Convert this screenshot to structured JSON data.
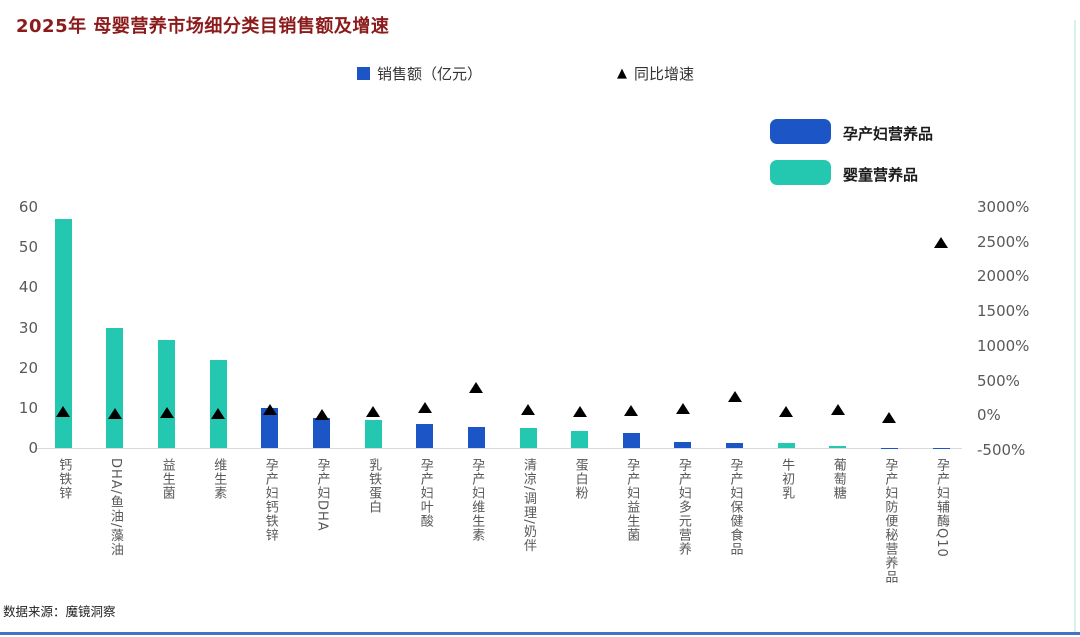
{
  "page": {
    "title": "2025年 母婴营养市场细分类目销售额及增速",
    "source": "数据来源：魔镜洞察"
  },
  "legend": {
    "sales": "销售额（亿元）",
    "growth": "同比增速"
  },
  "series_legend": [
    {
      "label": "孕产妇营养品",
      "color": "#1C55C6"
    },
    {
      "label": "婴童营养品",
      "color": "#24C8B1"
    }
  ],
  "chart_data": {
    "type": "bar",
    "title": "2025年 母婴营养市场细分类目销售额及增速",
    "categories": [
      "钙铁锌",
      "DHA/鱼油/藻油",
      "益生菌",
      "维生素",
      "孕产妇钙铁锌",
      "孕产妇DHA",
      "乳铁蛋白",
      "孕产妇叶酸",
      "孕产妇维生素",
      "清凉/调理/奶伴",
      "蛋白粉",
      "孕产妇益生菌",
      "孕产妇多元营养",
      "孕产妇保健食品",
      "牛初乳",
      "葡萄糖",
      "孕产妇防便秘营养品",
      "孕产妇辅酶Q10"
    ],
    "series": [
      {
        "name": "销售额（亿元）",
        "type": "bar",
        "axis": "left",
        "values": [
          57,
          30,
          27,
          22,
          10,
          7.6,
          7.1,
          6.1,
          5.3,
          5.1,
          4.2,
          3.7,
          1.6,
          1.3,
          1.2,
          0.5,
          0.1,
          0.1
        ],
        "groups": [
          "婴童营养品",
          "婴童营养品",
          "婴童营养品",
          "婴童营养品",
          "孕产妇营养品",
          "孕产妇营养品",
          "婴童营养品",
          "孕产妇营养品",
          "孕产妇营养品",
          "婴童营养品",
          "婴童营养品",
          "孕产妇营养品",
          "孕产妇营养品",
          "孕产妇营养品",
          "婴童营养品",
          "婴童营养品",
          "孕产妇营养品",
          "孕产妇营养品"
        ]
      },
      {
        "name": "同比增速",
        "type": "scatter-triangle",
        "axis": "right",
        "values_pct": [
          50,
          20,
          30,
          20,
          75,
          5,
          45,
          100,
          400,
          75,
          45,
          60,
          85,
          270,
          45,
          75,
          -45,
          2480
        ]
      }
    ],
    "left_axis": {
      "ticks": [
        0,
        10,
        20,
        30,
        40,
        50,
        60
      ],
      "range": [
        0,
        60
      ]
    },
    "right_axis": {
      "ticks": [
        "3000%",
        "2500%",
        "2000%",
        "1500%",
        "1000%",
        "500%",
        "0%",
        "-500%"
      ],
      "range_pct": [
        -500,
        3000
      ]
    },
    "colors": {
      "孕产妇营养品": "#1C55C6",
      "婴童营养品": "#24C8B1",
      "triangle": "#000000",
      "axis_text": "#595959",
      "baseline": "#d9d9d9"
    },
    "legend_position": "top",
    "grid": false
  }
}
